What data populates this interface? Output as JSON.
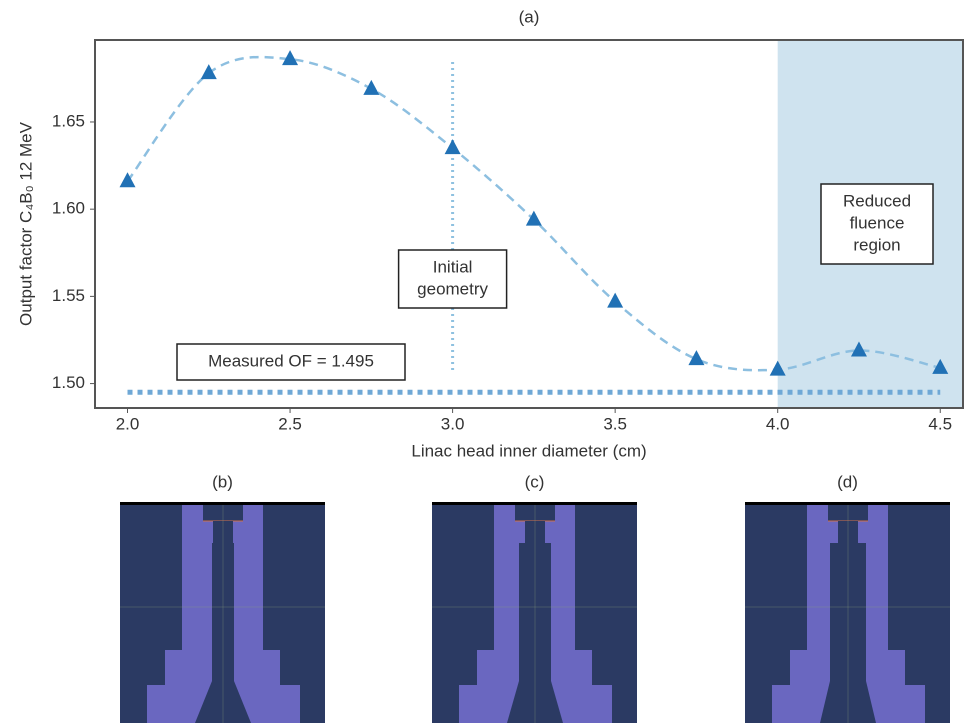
{
  "chart_data": {
    "type": "scatter",
    "title": "(a)",
    "xlabel": "Linac head inner diameter (cm)",
    "ylabel": "Output factor C₄B₀ 12 MeV",
    "x": [
      2.0,
      2.25,
      2.5,
      2.75,
      3.0,
      3.25,
      3.5,
      3.75,
      4.0,
      4.25,
      4.5
    ],
    "values": [
      1.616,
      1.678,
      1.686,
      1.669,
      1.635,
      1.594,
      1.547,
      1.514,
      1.508,
      1.519,
      1.509
    ],
    "color": "#2171b5",
    "fit_color": "#8dbfe0",
    "xlim": [
      1.9,
      4.57
    ],
    "ylim": [
      1.486,
      1.697
    ],
    "xticks": [
      {
        "value": 2.0,
        "label": "2.0"
      },
      {
        "value": 2.5,
        "label": "2.5"
      },
      {
        "value": 3.0,
        "label": "3.0"
      },
      {
        "value": 3.5,
        "label": "3.5"
      },
      {
        "value": 4.0,
        "label": "4.0"
      },
      {
        "value": 4.5,
        "label": "4.5"
      }
    ],
    "yticks": [
      {
        "value": 1.5,
        "label": "1.50"
      },
      1.55,
      {
        "value": 1.6,
        "label": "1.60"
      },
      1.65
    ],
    "reference_line": {
      "value": 1.495,
      "label": "Measured OF = 1.495",
      "color": "#6fa8d6"
    },
    "vline": {
      "x": 3.0,
      "label": [
        "Initial",
        "geometry"
      ],
      "color": "#8ec1e0"
    },
    "shaded_region": {
      "x": 4.0,
      "label": [
        "Reduced",
        "fluence",
        "region"
      ],
      "color": "#cfe3ef"
    }
  },
  "panels": [
    {
      "label": "(b)"
    },
    {
      "label": "(c)"
    },
    {
      "label": "(d)"
    }
  ]
}
